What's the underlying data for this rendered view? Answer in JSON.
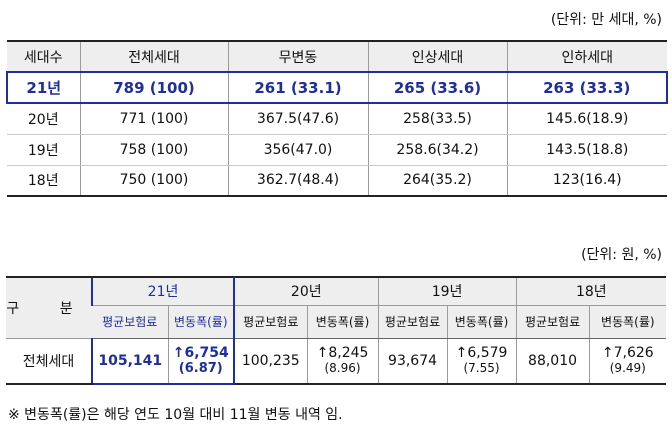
{
  "unit_top": "(단위: 만 세대, %)",
  "table1": {
    "headers": [
      "세대수",
      "전체세대",
      "무변동",
      "인상세대",
      "인하세대"
    ],
    "rows": [
      [
        "21년",
        "789 (100)",
        "261 (33.1)",
        "265 (33.6)",
        "263 (33.3)"
      ],
      [
        "20년",
        "771 (100)",
        "367.5(47.6)",
        "258(33.5)",
        "145.6(18.9)"
      ],
      [
        "19년",
        "758 (100)",
        "356(47.0)",
        "258.6(34.2)",
        "143.5(18.8)"
      ],
      [
        "18년",
        "750 (100)",
        "362.7(48.4)",
        "264(35.2)",
        "123(16.4)"
      ]
    ]
  },
  "unit_bottom": "(단위: 원, %)",
  "table2": {
    "gubun": "구 분",
    "years": [
      "21년",
      "20년",
      "19년",
      "18년"
    ],
    "subheaders": [
      "평균보험료",
      "변동폭(률)"
    ],
    "row_label": "전체세대",
    "cells": [
      {
        "avg": "105,141",
        "chg": "↑6,754",
        "rate": "(6.87)"
      },
      {
        "avg": "100,235",
        "chg": "↑8,245",
        "rate": "(8.96)"
      },
      {
        "avg": "93,674",
        "chg": "↑6,579",
        "rate": "(7.55)"
      },
      {
        "avg": "88,010",
        "chg": "↑7,626",
        "rate": "(9.49)"
      }
    ]
  },
  "note": "※ 변동폭(률)은 해당 연도 10월 대비 11월 변동 내역 임.",
  "colors": {
    "highlight": "#1f2ea0",
    "header_bg": "#eeeeee"
  }
}
